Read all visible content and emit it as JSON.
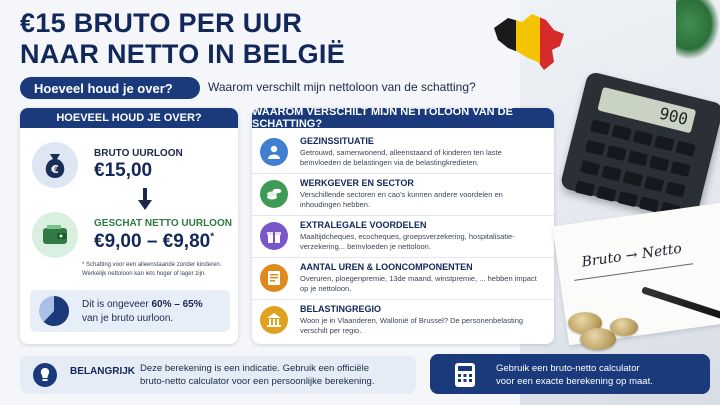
{
  "title_line1": "€15 BRUTO PER UUR",
  "title_line2": "NAAR NETTO IN BELGIË",
  "pill_left": "Hoeveel houd je over?",
  "pill_right": "Waarom verschilt mijn nettoloon van de schatting?",
  "left_card": {
    "header": "HOEVEEL HOUD JE OVER?",
    "gross_label": "BRUTO UURLOON",
    "gross_value": "€15,00",
    "net_label": "GESCHAT NETTO UURLOON",
    "net_value": "€9,00 – €9,80",
    "net_star": "*",
    "footnote_line1": "* Schatting voor een alleenstaande zonder kinderen.",
    "footnote_line2": "Werkelijk nettoloon kan iets hoger of lager zijn.",
    "pct_prefix": "Dit is ongeveer ",
    "pct_value": "60% – 65%",
    "pct_suffix": "van je bruto uurloon.",
    "pie_fraction": 0.62
  },
  "mid_card": {
    "header": "WAAROM VERSCHILT MIJN NETTOLOON VAN DE SCHATTING?",
    "rows": [
      {
        "title": "GEZINSSITUATIE",
        "desc": "Getrouwd, samenwonend, alleenstaand of kinderen ten laste beïnvloeden de belastingen via de belastingkredieten.",
        "icon": "person-icon",
        "color": "#3f7fd1"
      },
      {
        "title": "WERKGEVER EN SECTOR",
        "desc": "Verschillende sectoren en cao's kunnen andere voordelen en inhoudingen hebben.",
        "icon": "coins-icon",
        "color": "#3e9a55"
      },
      {
        "title": "EXTRALEGALE VOORDELEN",
        "desc": "Maaltijdcheques, ecocheques, groepsverzekering, hospitalisatie-verzekering... beïnvloeden je nettoloon.",
        "icon": "gift-icon",
        "color": "#7a57c9"
      },
      {
        "title": "AANTAL UREN & LOONCOMPONENTEN",
        "desc": "Overuren, ploegenpremie, 13de maand, winstpremie, ... hebben impact op je nettoloon.",
        "icon": "document-icon",
        "color": "#e08a1e"
      },
      {
        "title": "BELASTINGREGIO",
        "desc": "Woon je in Vlaanderen, Wallonië of Brussel? De personenbelasting verschilt per regio.",
        "icon": "bank-icon",
        "color": "#e0a21e"
      }
    ]
  },
  "bottom_left": {
    "label": "BELANGRIJK",
    "text_line1": "Deze berekening is een indicatie. Gebruik een officiële",
    "text_line2": "bruto-netto calculator voor een persoonlijke berekening."
  },
  "bottom_right": {
    "text_line1": "Gebruik een bruto-netto calculator",
    "text_line2": "voor een exacte berekening op maat."
  },
  "calculator_display": "900",
  "paper_note": "Bruto → Netto",
  "colors": {
    "navy": "#1a3a7c",
    "flag_black": "#1a1a1a",
    "flag_yellow": "#f5c400",
    "flag_red": "#d62b2b"
  }
}
